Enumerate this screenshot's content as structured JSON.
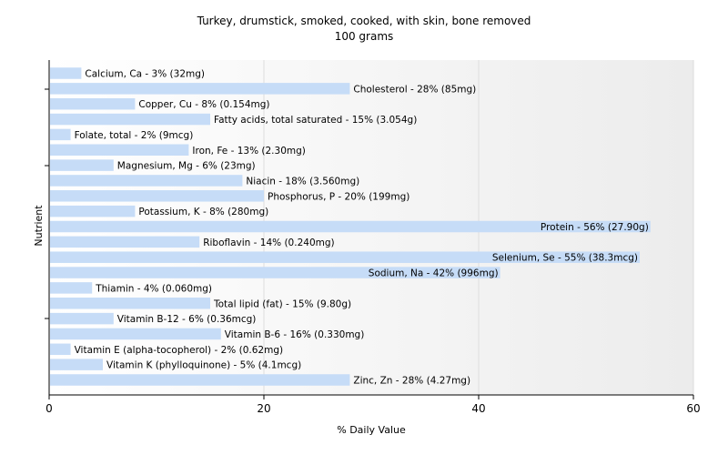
{
  "chart_data": {
    "type": "bar",
    "orientation": "horizontal",
    "title": "Turkey, drumstick, smoked, cooked, with skin, bone removed",
    "subtitle": "100 grams",
    "xlabel": "% Daily Value",
    "ylabel": "Nutrient",
    "xlim": [
      0,
      60
    ],
    "xticks": [
      0,
      20,
      40,
      60
    ],
    "grid": true,
    "bar_color": "#c6dcf7",
    "categories": [
      "Calcium, Ca",
      "Cholesterol",
      "Copper, Cu",
      "Fatty acids, total saturated",
      "Folate, total",
      "Iron, Fe",
      "Magnesium, Mg",
      "Niacin",
      "Phosphorus, P",
      "Potassium, K",
      "Protein",
      "Riboflavin",
      "Selenium, Se",
      "Sodium, Na",
      "Thiamin",
      "Total lipid (fat)",
      "Vitamin B-12",
      "Vitamin B-6",
      "Vitamin E (alpha-tocopherol)",
      "Vitamin K (phylloquinone)",
      "Zinc, Zn"
    ],
    "values": [
      3,
      28,
      8,
      15,
      2,
      13,
      6,
      18,
      20,
      8,
      56,
      14,
      55,
      42,
      4,
      15,
      6,
      16,
      2,
      5,
      28
    ],
    "labels": [
      "Calcium, Ca - 3% (32mg)",
      "Cholesterol - 28% (85mg)",
      "Copper, Cu - 8% (0.154mg)",
      "Fatty acids, total saturated - 15% (3.054g)",
      "Folate, total - 2% (9mcg)",
      "Iron, Fe - 13% (2.30mg)",
      "Magnesium, Mg - 6% (23mg)",
      "Niacin - 18% (3.560mg)",
      "Phosphorus, P - 20% (199mg)",
      "Potassium, K - 8% (280mg)",
      "Protein - 56% (27.90g)",
      "Riboflavin - 14% (0.240mg)",
      "Selenium, Se - 55% (38.3mcg)",
      "Sodium, Na - 42% (996mg)",
      "Thiamin - 4% (0.060mg)",
      "Total lipid (fat) - 15% (9.80g)",
      "Vitamin B-12 - 6% (0.36mcg)",
      "Vitamin B-6 - 16% (0.330mg)",
      "Vitamin E (alpha-tocopherol) - 2% (0.62mg)",
      "Vitamin K (phylloquinone) - 5% (4.1mcg)",
      "Zinc, Zn - 28% (4.27mg)"
    ]
  }
}
